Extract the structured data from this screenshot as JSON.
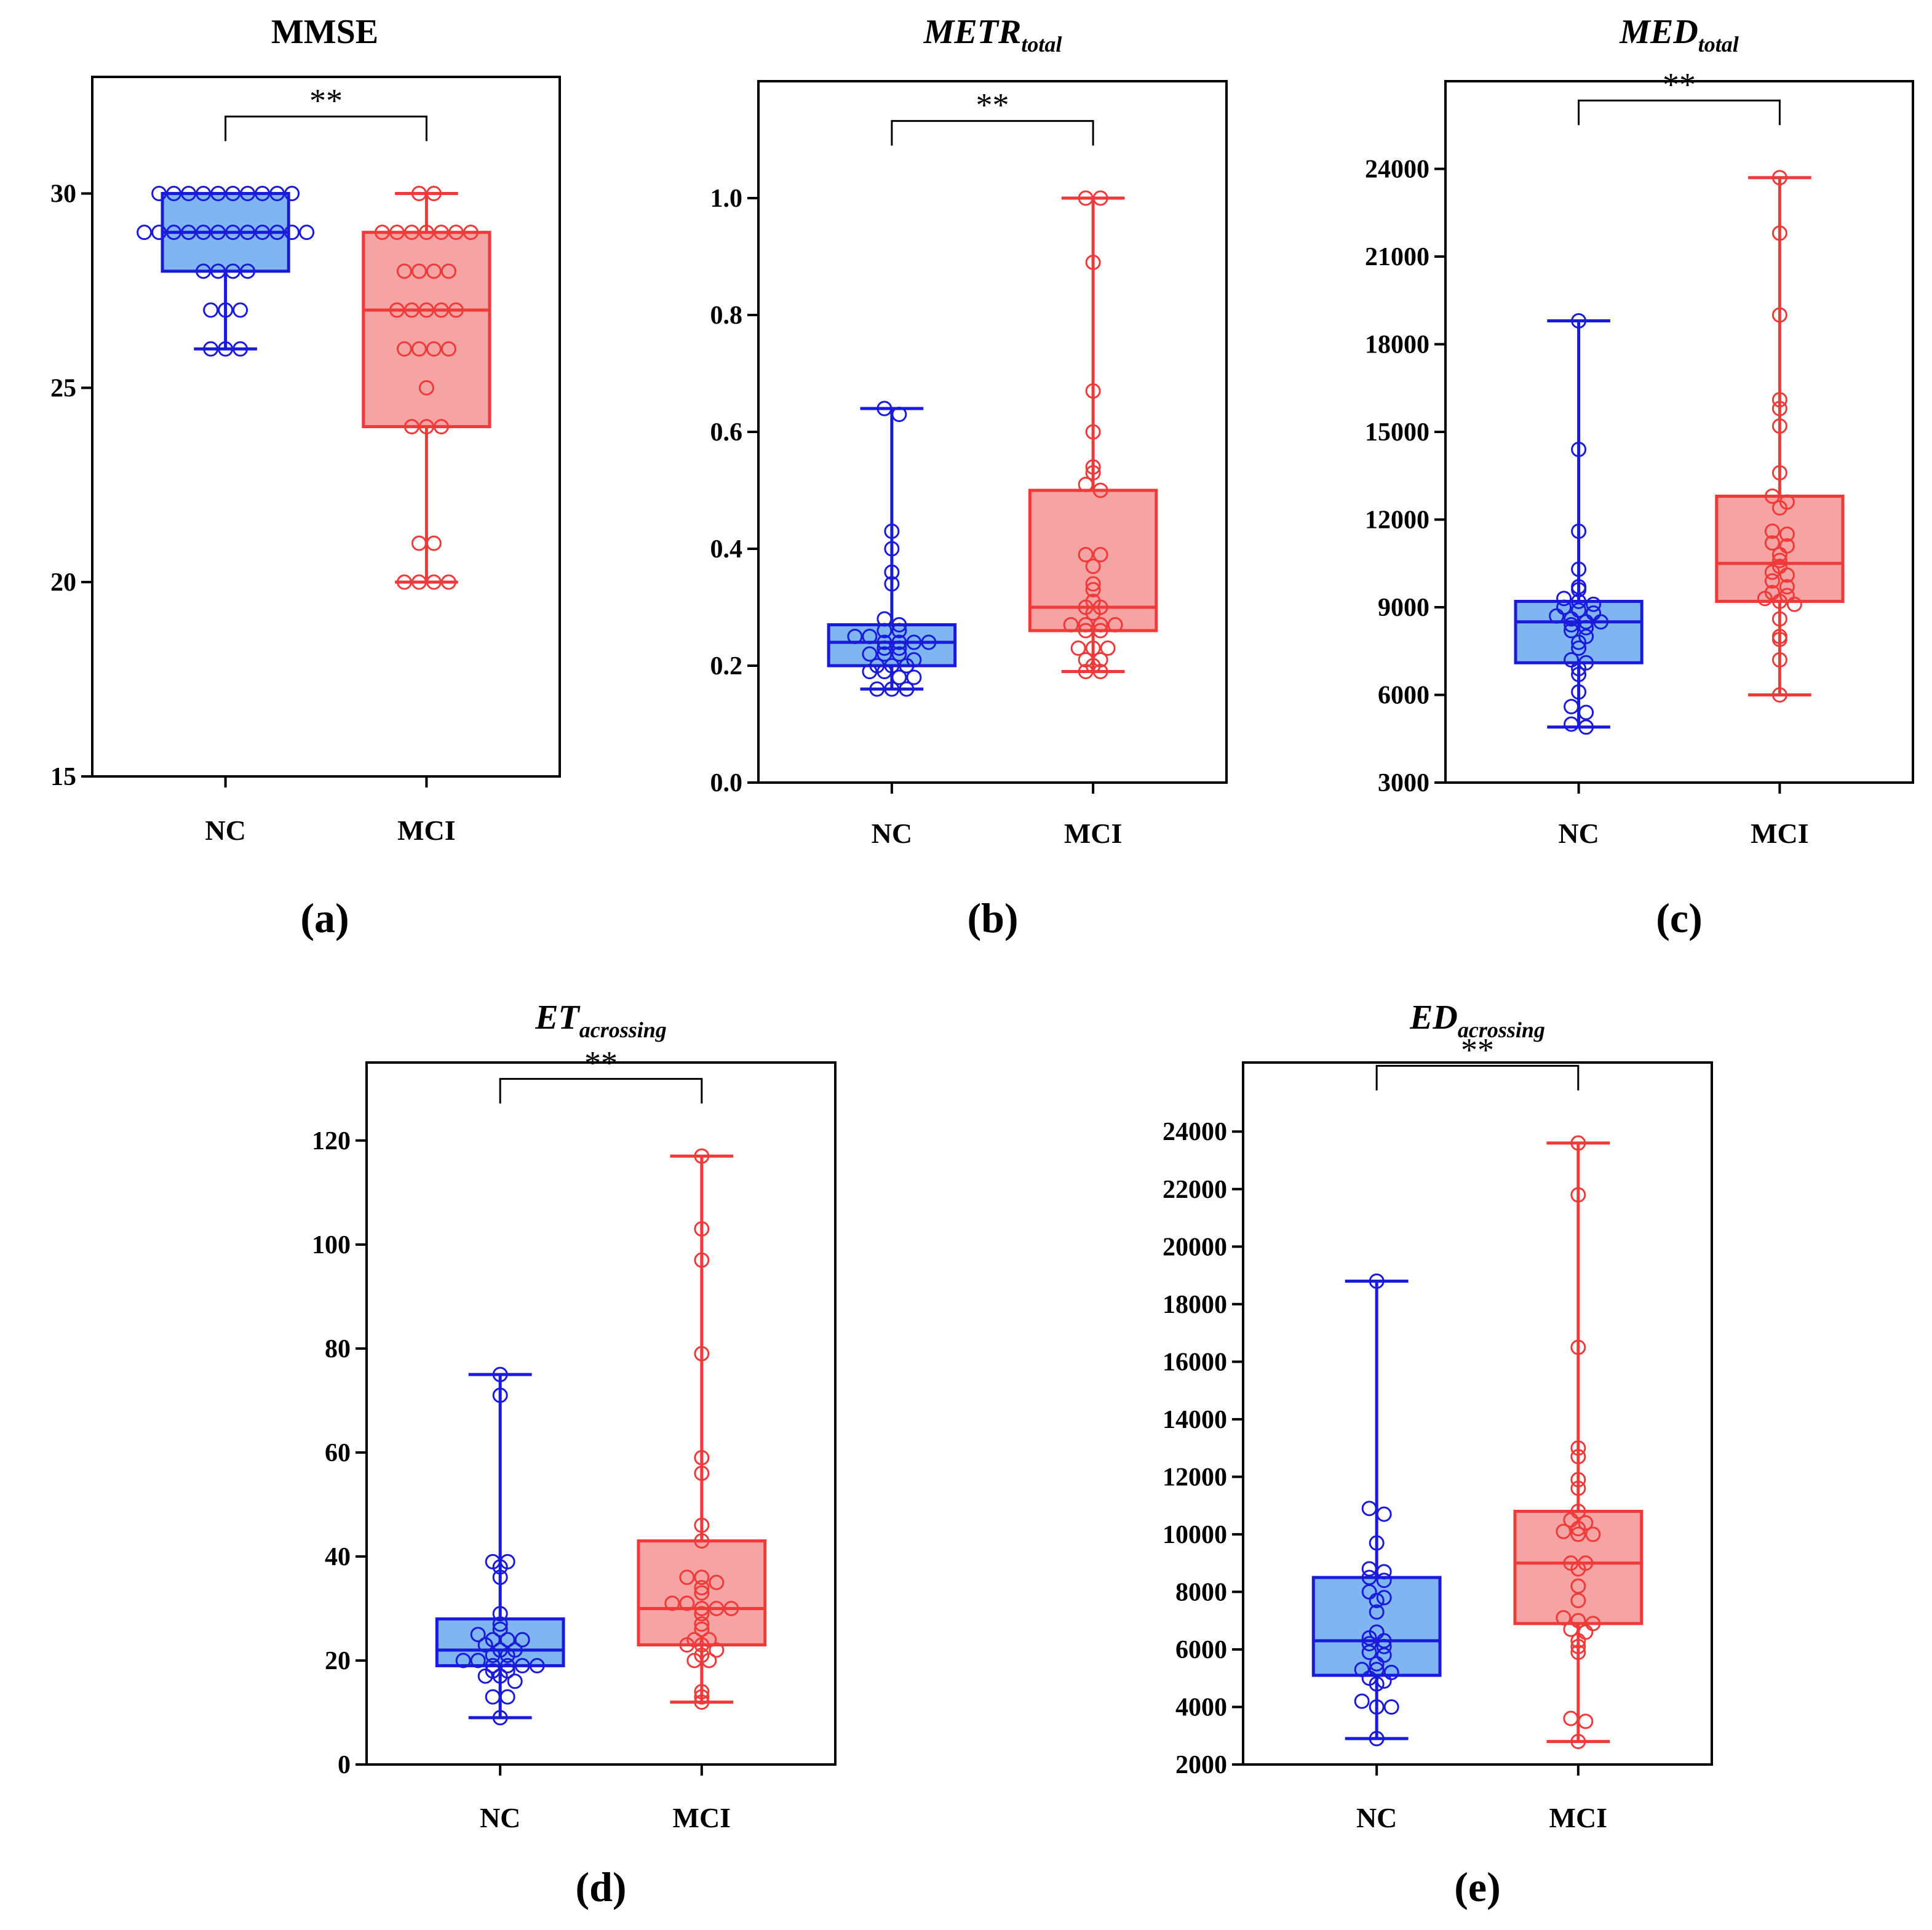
{
  "colors": {
    "nc": "#1a1adb",
    "nc_fill": "#7fb6f2",
    "mci": "#f03a3a",
    "mci_fill": "#f6a3a3",
    "axis": "#000000"
  },
  "chart_data": [
    {
      "type": "box",
      "panel_label": "(a)",
      "title": {
        "main": "MMSE",
        "sub": ""
      },
      "categories": [
        "NC",
        "MCI"
      ],
      "ylim": [
        15,
        33
      ],
      "yticks": [
        15,
        20,
        25,
        30
      ],
      "grid": false,
      "significance": "**",
      "series": [
        {
          "name": "NC",
          "box": {
            "min": 26,
            "q1": 28,
            "median": 29,
            "q3": 30,
            "max": 30
          },
          "points": [
            30,
            30,
            30,
            30,
            30,
            30,
            30,
            30,
            30,
            30,
            29,
            29,
            29,
            29,
            29,
            29,
            29,
            29,
            29,
            29,
            29,
            29,
            28,
            28,
            28,
            28,
            27,
            27,
            27,
            26,
            26,
            26
          ]
        },
        {
          "name": "MCI",
          "box": {
            "min": 20,
            "q1": 24,
            "median": 27,
            "q3": 29,
            "max": 30
          },
          "points": [
            30,
            30,
            29,
            29,
            29,
            29,
            29,
            29,
            29,
            28,
            28,
            28,
            28,
            27,
            27,
            27,
            27,
            27,
            26,
            26,
            26,
            26,
            25,
            24,
            24,
            24,
            21,
            21,
            20,
            20,
            20,
            20
          ]
        }
      ]
    },
    {
      "type": "box",
      "panel_label": "(b)",
      "title": {
        "main": "METR",
        "sub": "total"
      },
      "categories": [
        "NC",
        "MCI"
      ],
      "ylim": [
        0,
        1.2
      ],
      "yticks": [
        0.0,
        0.2,
        0.4,
        0.6,
        0.8,
        1.0
      ],
      "ytick_labels": [
        "0.0",
        "0.2",
        "0.4",
        "0.6",
        "0.8",
        "1.0"
      ],
      "grid": false,
      "significance": "**",
      "series": [
        {
          "name": "NC",
          "box": {
            "min": 0.16,
            "q1": 0.2,
            "median": 0.24,
            "q3": 0.27,
            "max": 0.64
          },
          "points": [
            0.64,
            0.63,
            0.43,
            0.4,
            0.36,
            0.34,
            0.28,
            0.27,
            0.26,
            0.26,
            0.25,
            0.25,
            0.24,
            0.24,
            0.24,
            0.24,
            0.23,
            0.23,
            0.22,
            0.22,
            0.22,
            0.21,
            0.2,
            0.2,
            0.2,
            0.19,
            0.19,
            0.18,
            0.18,
            0.16,
            0.16,
            0.16
          ]
        },
        {
          "name": "MCI",
          "box": {
            "min": 0.19,
            "q1": 0.26,
            "median": 0.3,
            "q3": 0.5,
            "max": 1.0
          },
          "points": [
            1.0,
            1.0,
            0.89,
            0.67,
            0.6,
            0.54,
            0.53,
            0.51,
            0.5,
            0.39,
            0.39,
            0.37,
            0.34,
            0.33,
            0.31,
            0.3,
            0.3,
            0.29,
            0.27,
            0.27,
            0.27,
            0.27,
            0.26,
            0.26,
            0.23,
            0.23,
            0.23,
            0.21,
            0.21,
            0.2,
            0.19,
            0.19
          ]
        }
      ]
    },
    {
      "type": "box",
      "panel_label": "(c)",
      "title": {
        "main": "MED",
        "sub": "total"
      },
      "categories": [
        "NC",
        "MCI"
      ],
      "ylim": [
        3000,
        27000
      ],
      "yticks": [
        3000,
        6000,
        9000,
        12000,
        15000,
        18000,
        21000,
        24000
      ],
      "grid": false,
      "significance": "**",
      "series": [
        {
          "name": "NC",
          "box": {
            "min": 4900,
            "q1": 7100,
            "median": 8500,
            "q3": 9200,
            "max": 18800
          },
          "points": [
            18800,
            14400,
            11600,
            10300,
            9700,
            9600,
            9300,
            9200,
            9100,
            9000,
            8900,
            8800,
            8700,
            8600,
            8500,
            8500,
            8400,
            8300,
            8200,
            8000,
            7800,
            7600,
            7200,
            7100,
            6900,
            6700,
            6100,
            5600,
            5400,
            5000,
            4900
          ]
        },
        {
          "name": "MCI",
          "box": {
            "min": 6000,
            "q1": 9200,
            "median": 10500,
            "q3": 12800,
            "max": 23700
          },
          "points": [
            23700,
            21800,
            19000,
            16100,
            15800,
            15200,
            13600,
            12800,
            12600,
            12400,
            11600,
            11500,
            11200,
            11100,
            10800,
            10600,
            10400,
            10200,
            10100,
            9900,
            9700,
            9500,
            9400,
            9300,
            9200,
            9100,
            8600,
            8000,
            7900,
            7200,
            6000
          ]
        }
      ]
    },
    {
      "type": "box",
      "panel_label": "(d)",
      "title": {
        "main": "ET",
        "sub": "acrossing"
      },
      "categories": [
        "NC",
        "MCI"
      ],
      "ylim": [
        0,
        135
      ],
      "yticks": [
        0,
        20,
        40,
        60,
        80,
        100,
        120
      ],
      "grid": false,
      "significance": "**",
      "series": [
        {
          "name": "NC",
          "box": {
            "min": 9,
            "q1": 19,
            "median": 22,
            "q3": 28,
            "max": 75
          },
          "points": [
            75,
            71,
            39,
            39,
            38,
            36,
            29,
            27,
            26,
            25,
            24,
            24,
            24,
            23,
            22,
            22,
            21,
            21,
            20,
            20,
            19,
            19,
            19,
            19,
            18,
            18,
            17,
            17,
            16,
            13,
            13,
            9
          ]
        },
        {
          "name": "MCI",
          "box": {
            "min": 12,
            "q1": 23,
            "median": 30,
            "q3": 43,
            "max": 117
          },
          "points": [
            117,
            103,
            97,
            79,
            59,
            56,
            46,
            43,
            36,
            36,
            35,
            34,
            33,
            31,
            31,
            30,
            30,
            30,
            29,
            27,
            26,
            24,
            24,
            23,
            23,
            22,
            21,
            20,
            20,
            14,
            13,
            12
          ]
        }
      ]
    },
    {
      "type": "box",
      "panel_label": "(e)",
      "title": {
        "main": "ED",
        "sub": "acrossing"
      },
      "categories": [
        "NC",
        "MCI"
      ],
      "ylim": [
        2000,
        26400
      ],
      "yticks": [
        2000,
        4000,
        6000,
        8000,
        10000,
        12000,
        14000,
        16000,
        18000,
        20000,
        22000,
        24000
      ],
      "grid": false,
      "significance": "**",
      "series": [
        {
          "name": "NC",
          "box": {
            "min": 2900,
            "q1": 5100,
            "median": 6300,
            "q3": 8500,
            "max": 18800
          },
          "points": [
            18800,
            10900,
            10700,
            9700,
            8800,
            8700,
            8500,
            8400,
            8000,
            7800,
            7700,
            7300,
            6600,
            6400,
            6300,
            6200,
            6100,
            5900,
            5800,
            5500,
            5300,
            5300,
            5200,
            5000,
            4900,
            4800,
            4200,
            4000,
            4000,
            2900
          ]
        },
        {
          "name": "MCI",
          "box": {
            "min": 2800,
            "q1": 6900,
            "median": 9000,
            "q3": 10800,
            "max": 23600
          },
          "points": [
            23600,
            21800,
            16500,
            13000,
            12700,
            11900,
            11600,
            10800,
            10500,
            10400,
            10200,
            10100,
            10000,
            10000,
            9000,
            9000,
            8800,
            8200,
            7700,
            7100,
            7000,
            6900,
            6700,
            6600,
            6300,
            6100,
            5900,
            3600,
            3500,
            2800
          ]
        }
      ]
    }
  ]
}
